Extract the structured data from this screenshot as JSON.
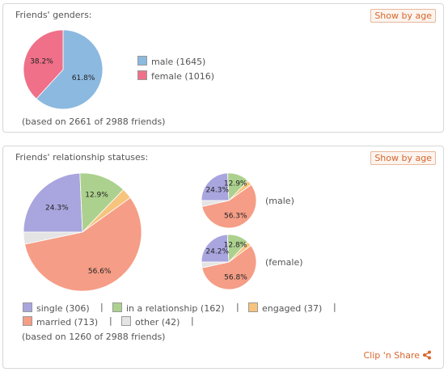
{
  "colors": {
    "male": "#8cb9e0",
    "female": "#ef7088",
    "single": "#a9a5de",
    "in_relationship": "#acd18e",
    "engaged": "#f7c47d",
    "married": "#f59d86",
    "other": "#e4e4e4",
    "accent": "#d8662b"
  },
  "genders": {
    "title": "Friends' genders:",
    "button": "Show by age",
    "legend": [
      {
        "label": "male (1645)"
      },
      {
        "label": "female (1016)"
      }
    ],
    "note": "(based on 2661 of 2988 friends)",
    "pie_labels": [
      "61.8%",
      "38.2%"
    ]
  },
  "relationships": {
    "title": "Friends' relationship statuses:",
    "button": "Show by age",
    "main_labels": [
      "24.3%",
      "12.9%",
      "56.6%"
    ],
    "male_caption": "(male)",
    "male_labels": [
      "24.3%",
      "12.9%",
      "56.3%"
    ],
    "female_caption": "(female)",
    "female_labels": [
      "24.2%",
      "12.8%",
      "56.8%"
    ],
    "legend": [
      {
        "label": "single (306)"
      },
      {
        "label": "in a relationship (162)"
      },
      {
        "label": "engaged (37)"
      },
      {
        "label": "married (713)"
      },
      {
        "label": "other (42)"
      }
    ],
    "note": "(based on 1260 of 2988 friends)",
    "clip_label": "Clip 'n Share",
    "share_icon": "share-icon"
  },
  "chart_data": [
    {
      "type": "pie",
      "title": "Friends' genders:",
      "categories": [
        "male",
        "female"
      ],
      "values": [
        1645,
        1016
      ],
      "percentages": [
        61.8,
        38.2
      ]
    },
    {
      "type": "pie",
      "title": "Friends' relationship statuses:",
      "categories": [
        "single",
        "in a relationship",
        "engaged",
        "married",
        "other"
      ],
      "values": [
        306,
        162,
        37,
        713,
        42
      ],
      "percentages": [
        24.3,
        12.9,
        2.9,
        56.6,
        3.3
      ]
    },
    {
      "type": "pie",
      "title": "(male)",
      "categories": [
        "single",
        "in a relationship",
        "engaged",
        "married",
        "other"
      ],
      "percentages": [
        24.3,
        12.9,
        3.0,
        56.3,
        3.5
      ]
    },
    {
      "type": "pie",
      "title": "(female)",
      "categories": [
        "single",
        "in a relationship",
        "engaged",
        "married",
        "other"
      ],
      "percentages": [
        24.2,
        12.8,
        2.8,
        56.8,
        3.4
      ]
    }
  ]
}
